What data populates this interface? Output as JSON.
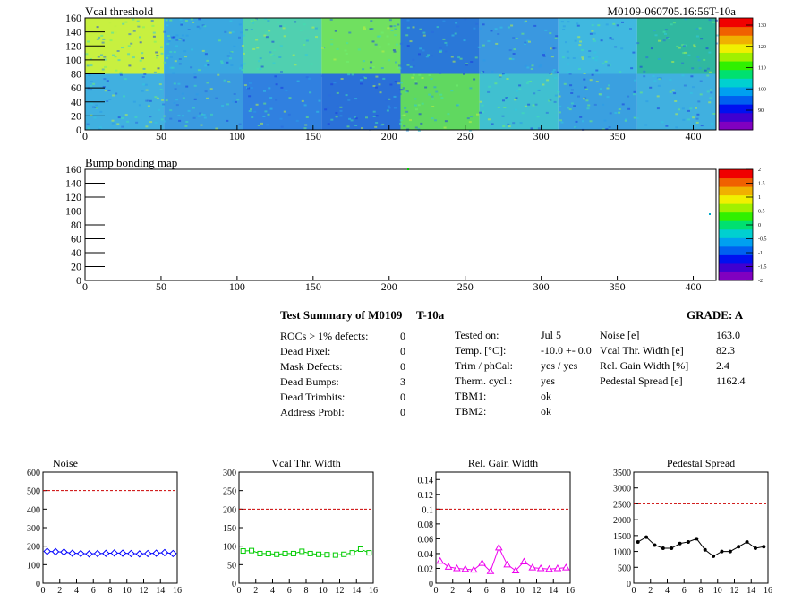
{
  "maps": [
    {
      "title": "Vcal threshold",
      "id_label": "M0109-060705.16:56T-10a",
      "x_ticks": [
        "0",
        "50",
        "100",
        "150",
        "200",
        "250",
        "300",
        "350",
        "400"
      ],
      "y_ticks": [
        "0",
        "20",
        "40",
        "60",
        "80",
        "100",
        "120",
        "140",
        "160"
      ],
      "palette_ticks": [
        "90",
        "100",
        "110",
        "120",
        "130"
      ]
    },
    {
      "title": "Bump bonding map",
      "x_ticks": [
        "0",
        "50",
        "100",
        "150",
        "200",
        "250",
        "300",
        "350",
        "400"
      ],
      "y_ticks": [
        "0",
        "20",
        "40",
        "60",
        "80",
        "100",
        "120",
        "140",
        "160"
      ],
      "palette_ticks": [
        "-2",
        "-1.5",
        "-1",
        "-0.5",
        "0",
        "0.5",
        "1",
        "1.5",
        "2"
      ]
    }
  ],
  "summary": {
    "title": "Test Summary of M0109",
    "temp_tag": "T-10a",
    "grade": "GRADE:  A",
    "col1": [
      {
        "label": "ROCs > 1% defects:",
        "value": "0"
      },
      {
        "label": "Dead Pixel:",
        "value": "0"
      },
      {
        "label": "Mask Defects:",
        "value": "0"
      },
      {
        "label": "Dead Bumps:",
        "value": "3"
      },
      {
        "label": "Dead Trimbits:",
        "value": "0"
      },
      {
        "label": "Address Probl:",
        "value": "0"
      }
    ],
    "col2": [
      {
        "label": "Tested on:",
        "value": "Jul 5"
      },
      {
        "label": "Temp. [°C]:",
        "value": "-10.0 +- 0.0"
      },
      {
        "label": "Trim / phCal:",
        "value": "yes / yes"
      },
      {
        "label": "Therm. cycl.:",
        "value": "yes"
      },
      {
        "label": "TBM1:",
        "value": "ok"
      },
      {
        "label": "TBM2:",
        "value": "ok"
      }
    ],
    "col3": [
      {
        "label": "Noise [e]",
        "value": "163.0"
      },
      {
        "label": "Vcal Thr. Width [e]",
        "value": "82.3"
      },
      {
        "label": "Rel. Gain Width [%]",
        "value": "2.4"
      },
      {
        "label": "Pedestal Spread [e]",
        "value": "1162.4"
      }
    ]
  },
  "chart_data": [
    {
      "type": "line",
      "title": "Noise",
      "color": "#0000ff",
      "marker": "diamond",
      "x": [
        0.5,
        1.5,
        2.5,
        3.5,
        4.5,
        5.5,
        6.5,
        7.5,
        8.5,
        9.5,
        10.5,
        11.5,
        12.5,
        13.5,
        14.5,
        15.5
      ],
      "values": [
        172,
        170,
        168,
        162,
        160,
        158,
        160,
        161,
        163,
        162,
        160,
        158,
        160,
        162,
        165,
        160
      ],
      "ylim": [
        0,
        600
      ],
      "xlim": [
        0,
        16
      ],
      "y_ticks": [
        "0",
        "100",
        "200",
        "300",
        "400",
        "500",
        "600"
      ],
      "x_ticks": [
        "0",
        "2",
        "4",
        "6",
        "8",
        "10",
        "12",
        "14",
        "16"
      ],
      "limit_line": 500
    },
    {
      "type": "line",
      "title": "Vcal Thr. Width",
      "color": "#00cc00",
      "marker": "square",
      "x": [
        0.5,
        1.5,
        2.5,
        3.5,
        4.5,
        5.5,
        6.5,
        7.5,
        8.5,
        9.5,
        10.5,
        11.5,
        12.5,
        13.5,
        14.5,
        15.5
      ],
      "values": [
        87,
        88,
        80,
        80,
        78,
        80,
        80,
        86,
        80,
        78,
        77,
        76,
        78,
        82,
        92,
        82
      ],
      "ylim": [
        0,
        300
      ],
      "xlim": [
        0,
        16
      ],
      "y_ticks": [
        "0",
        "50",
        "100",
        "150",
        "200",
        "250",
        "300"
      ],
      "x_ticks": [
        "0",
        "2",
        "4",
        "6",
        "8",
        "10",
        "12",
        "14",
        "16"
      ],
      "limit_line": 200
    },
    {
      "type": "line",
      "title": "Rel. Gain Width",
      "color": "#ee00ee",
      "marker": "triangle",
      "x": [
        0.5,
        1.5,
        2.5,
        3.5,
        4.5,
        5.5,
        6.5,
        7.5,
        8.5,
        9.5,
        10.5,
        11.5,
        12.5,
        13.5,
        14.5,
        15.5
      ],
      "values": [
        0.03,
        0.022,
        0.02,
        0.019,
        0.018,
        0.027,
        0.016,
        0.048,
        0.025,
        0.017,
        0.029,
        0.021,
        0.02,
        0.019,
        0.02,
        0.021
      ],
      "ylim": [
        0,
        0.15
      ],
      "xlim": [
        0,
        16
      ],
      "y_ticks": [
        "0",
        "0.02",
        "0.04",
        "0.06",
        "0.08",
        "0.1",
        "0.12",
        "0.14"
      ],
      "x_ticks": [
        "0",
        "2",
        "4",
        "6",
        "8",
        "10",
        "12",
        "14",
        "16"
      ],
      "limit_line": 0.1
    },
    {
      "type": "line",
      "title": "Pedestal Spread",
      "color": "#000000",
      "marker": "dot",
      "x": [
        0.5,
        1.5,
        2.5,
        3.5,
        4.5,
        5.5,
        6.5,
        7.5,
        8.5,
        9.5,
        10.5,
        11.5,
        12.5,
        13.5,
        14.5,
        15.5
      ],
      "values": [
        1300,
        1450,
        1200,
        1100,
        1100,
        1250,
        1300,
        1400,
        1050,
        850,
        1000,
        1000,
        1150,
        1300,
        1100,
        1150
      ],
      "ylim": [
        0,
        3500
      ],
      "xlim": [
        0,
        16
      ],
      "y_ticks": [
        "0",
        "500",
        "1000",
        "1500",
        "2000",
        "2500",
        "3000",
        "3500"
      ],
      "x_ticks": [
        "0",
        "2",
        "4",
        "6",
        "8",
        "10",
        "12",
        "14",
        "16"
      ],
      "limit_line": 2500
    }
  ]
}
